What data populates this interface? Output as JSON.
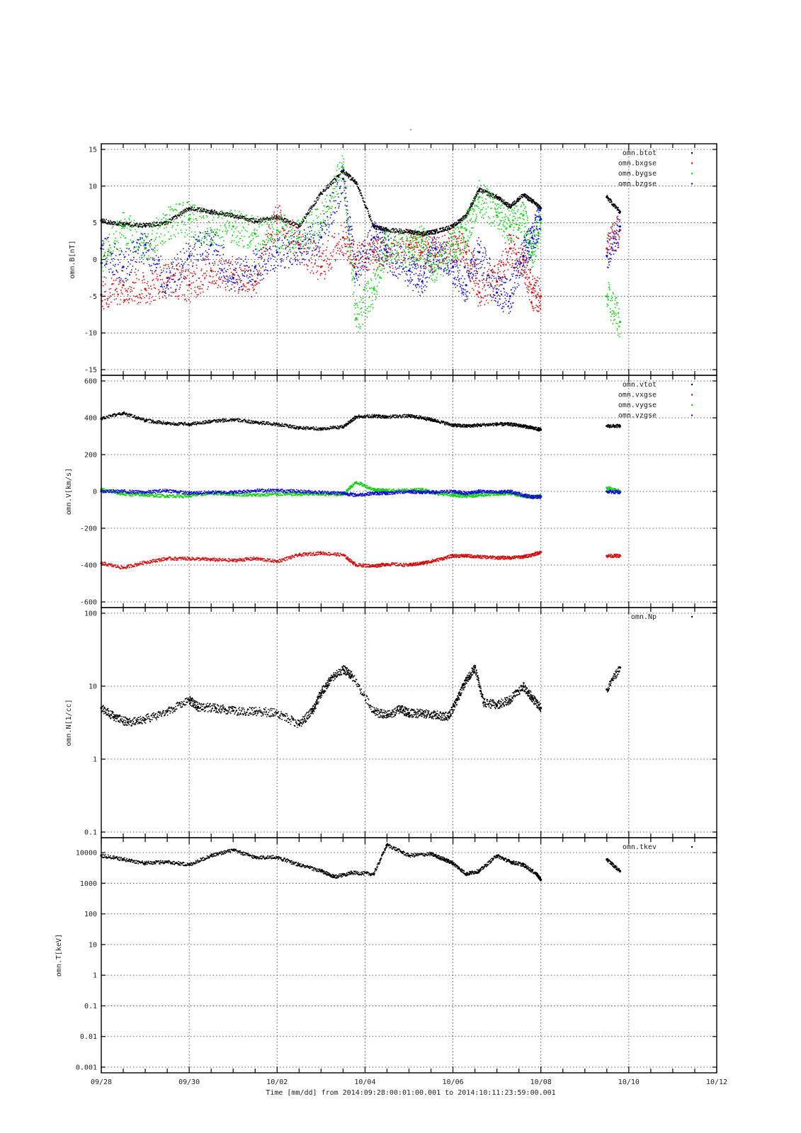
{
  "figure": {
    "title_mark": "-",
    "xlabel": "Time [mm/dd]  from 2014:09:28:00:01:00.001  to  2014:10:11:23:59:00.001",
    "x_tick_labels": [
      "09/28",
      "09/30",
      "10/02",
      "10/04",
      "10/06",
      "10/08",
      "10/10",
      "10/12"
    ]
  },
  "colors": {
    "black": "#000000",
    "red": "#d01010",
    "green": "#10d010",
    "blue": "#1010d0"
  },
  "chart_data": [
    {
      "type": "scatter",
      "ylabel": "omn.B[nT]",
      "ylim": [
        -15,
        15
      ],
      "yticks": [
        15,
        10,
        5,
        0,
        -5,
        -10,
        -15
      ],
      "ytick_labels": [
        "15",
        "10",
        "5",
        "0",
        "-5",
        "-10",
        "-15"
      ],
      "xlim_days": [
        0,
        14
      ],
      "grid": true,
      "legend_position": "top-right",
      "x_days": [
        0,
        0.5,
        1,
        1.5,
        2,
        2.5,
        3,
        3.5,
        4,
        4.5,
        5,
        5.5,
        5.8,
        6.2,
        6.5,
        7,
        7.3,
        7.6,
        8,
        8.3,
        8.6,
        9,
        9.3,
        9.6,
        9.8,
        10,
        11.5,
        11.8
      ],
      "series": [
        {
          "name": "omn.btot",
          "color": "#000000",
          "values": [
            5.3,
            4.8,
            4.6,
            5.0,
            7.0,
            6.5,
            6.0,
            5.2,
            5.8,
            4.5,
            9.0,
            12.0,
            10.5,
            4.5,
            4.0,
            3.8,
            3.5,
            3.8,
            4.5,
            6.0,
            9.5,
            8.5,
            7.2,
            8.8,
            8.0,
            7.0,
            8.5,
            6.5
          ]
        },
        {
          "name": "omn.bxgse",
          "color": "#d01010",
          "values": [
            -4.8,
            -3.5,
            -4.0,
            -2.5,
            -3.5,
            -1.5,
            -2.0,
            -3.0,
            5.5,
            2.0,
            -1.0,
            3.0,
            0.0,
            1.0,
            0.5,
            2.0,
            1.0,
            0.5,
            2.0,
            1.0,
            -4.5,
            -3.0,
            1.5,
            0.0,
            -4.5,
            -5.0,
            1.5,
            4.0
          ]
        },
        {
          "name": "omn.bygse",
          "color": "#10d010",
          "values": [
            -0.5,
            4.5,
            1.5,
            5.0,
            5.5,
            4.0,
            4.5,
            3.5,
            4.0,
            3.0,
            5.0,
            12.5,
            -8.0,
            -4.0,
            2.0,
            1.0,
            2.5,
            -1.5,
            2.0,
            4.0,
            8.5,
            6.0,
            4.5,
            6.0,
            1.0,
            5.0,
            -5.0,
            -8.5
          ]
        },
        {
          "name": "omn.bzgse",
          "color": "#1010d0",
          "values": [
            1.5,
            -1.0,
            2.0,
            -3.5,
            0.5,
            2.0,
            -2.5,
            -1.0,
            1.0,
            1.5,
            3.0,
            11.0,
            -2.0,
            3.0,
            1.0,
            -1.5,
            -3.0,
            1.5,
            -1.0,
            -3.5,
            1.0,
            -4.5,
            -5.0,
            0.5,
            3.0,
            5.5,
            0.5,
            4.5
          ]
        }
      ]
    },
    {
      "type": "scatter",
      "ylabel": "omn.V[km/s]",
      "ylim": [
        -600,
        600
      ],
      "yticks": [
        600,
        400,
        200,
        0,
        -200,
        -400,
        -600
      ],
      "ytick_labels": [
        "600",
        "400",
        "200",
        "0",
        "-200",
        "-400",
        "-600"
      ],
      "xlim_days": [
        0,
        14
      ],
      "grid": true,
      "legend_position": "top-right",
      "x_days": [
        0,
        0.5,
        1,
        1.5,
        2,
        2.5,
        3,
        3.5,
        4,
        4.5,
        5,
        5.5,
        5.8,
        6.2,
        6.5,
        7,
        7.3,
        7.6,
        8,
        8.3,
        8.6,
        9,
        9.3,
        9.6,
        9.8,
        10,
        11.5,
        11.8
      ],
      "series": [
        {
          "name": "omn.vtot",
          "color": "#000000",
          "values": [
            395,
            425,
            385,
            370,
            365,
            380,
            390,
            375,
            365,
            345,
            340,
            350,
            405,
            410,
            405,
            410,
            400,
            385,
            360,
            355,
            360,
            365,
            365,
            355,
            345,
            335,
            355,
            355
          ]
        },
        {
          "name": "omn.vxgse",
          "color": "#d01010",
          "values": [
            -390,
            -415,
            -385,
            -365,
            -365,
            -370,
            -375,
            -365,
            -380,
            -345,
            -335,
            -345,
            -400,
            -405,
            -395,
            -400,
            -390,
            -375,
            -350,
            -350,
            -355,
            -360,
            -360,
            -355,
            -345,
            -330,
            -350,
            -350
          ]
        },
        {
          "name": "omn.vygse",
          "color": "#10d010",
          "values": [
            10,
            -15,
            -20,
            -25,
            -25,
            -10,
            -15,
            -20,
            -15,
            -15,
            -15,
            -15,
            50,
            10,
            5,
            5,
            10,
            -10,
            -20,
            -25,
            -20,
            -15,
            -10,
            -25,
            -30,
            -25,
            20,
            0
          ]
        },
        {
          "name": "omn.vzgse",
          "color": "#1010d0",
          "values": [
            0,
            0,
            -5,
            5,
            -10,
            -5,
            -5,
            5,
            5,
            0,
            -5,
            -10,
            -20,
            -10,
            -10,
            0,
            -5,
            -5,
            0,
            -10,
            0,
            -5,
            0,
            -20,
            -30,
            -30,
            0,
            -5
          ]
        }
      ]
    },
    {
      "type": "scatter",
      "ylabel": "omn.N[1/cc]",
      "yscale": "log",
      "ylim": [
        0.1,
        100
      ],
      "yticks": [
        100,
        10,
        1,
        0.1
      ],
      "ytick_labels": [
        "100",
        "10",
        "1",
        "0.1"
      ],
      "xlim_days": [
        0,
        14
      ],
      "grid": true,
      "legend_position": "top-right",
      "x_days": [
        0,
        0.3,
        0.6,
        1,
        1.5,
        2,
        2.2,
        2.6,
        3,
        3.5,
        4,
        4.5,
        4.8,
        5,
        5.2,
        5.5,
        5.7,
        6.2,
        6.5,
        6.8,
        7.0,
        7.3,
        7.6,
        7.9,
        8.1,
        8.3,
        8.5,
        8.7,
        9,
        9.3,
        9.6,
        9.8,
        10,
        11.5,
        11.8
      ],
      "series": [
        {
          "name": "omn.Np",
          "color": "#000000",
          "values": [
            5.0,
            3.8,
            3.2,
            3.5,
            4.5,
            6.5,
            5.2,
            5.0,
            4.6,
            4.5,
            4.3,
            3.0,
            4.5,
            8.0,
            12.0,
            17.0,
            14.0,
            4.5,
            4.0,
            4.8,
            4.3,
            4.2,
            4.0,
            3.8,
            6.5,
            12.0,
            18.0,
            6.0,
            5.5,
            6.5,
            10.0,
            7.0,
            5.0,
            9.0,
            18.0
          ]
        }
      ]
    },
    {
      "type": "scatter",
      "ylabel": "omn.T[keV]",
      "yscale": "log",
      "ylim": [
        0.001,
        20000
      ],
      "yticks": [
        10000,
        1000,
        100,
        10,
        1,
        0.1,
        0.01,
        0.001
      ],
      "ytick_labels": [
        "10000",
        "1000",
        "100",
        "10",
        "1",
        "0.1",
        "0.01",
        "0.001"
      ],
      "xlim_days": [
        0,
        14
      ],
      "grid": true,
      "legend_position": "top-right",
      "x_days": [
        0,
        0.5,
        1,
        1.5,
        2,
        2.5,
        3,
        3.5,
        4,
        4.5,
        5,
        5.3,
        5.7,
        6.2,
        6.5,
        7,
        7.5,
        7.8,
        8,
        8.3,
        8.6,
        9,
        9.3,
        9.6,
        9.9,
        10,
        11.5,
        11.8
      ],
      "series": [
        {
          "name": "omn.tkev",
          "color": "#000000",
          "values": [
            8000,
            6000,
            4500,
            5000,
            4000,
            8000,
            12000,
            7000,
            7000,
            4000,
            2500,
            1600,
            2200,
            2000,
            18000,
            8000,
            9000,
            6000,
            4500,
            2000,
            2500,
            8000,
            5000,
            4000,
            2000,
            1300,
            6000,
            2500
          ]
        }
      ]
    }
  ]
}
